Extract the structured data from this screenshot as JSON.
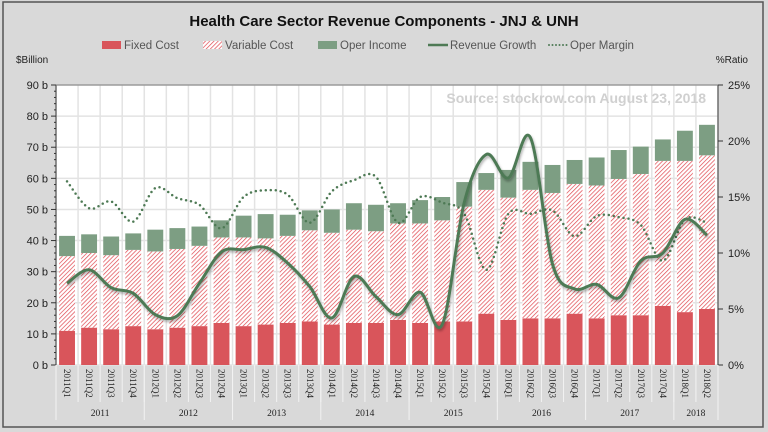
{
  "chart_data": {
    "type": "bar",
    "title": "Health Care Sector Revenue Components - JNJ & UNH",
    "watermark": "Source: stockrow.com August 23, 2018",
    "ylabel_left": "$Billion",
    "ylabel_right": "%Ratio",
    "ylim_left": [
      0,
      90
    ],
    "ylim_right": [
      0,
      25
    ],
    "left_ticks": [
      "0 b",
      "10 b",
      "20 b",
      "30 b",
      "40 b",
      "50 b",
      "60 b",
      "70 b",
      "80 b",
      "90 b"
    ],
    "right_ticks": [
      "0%",
      "5%",
      "10%",
      "15%",
      "20%",
      "25%"
    ],
    "grid": true,
    "legend_placement": "top",
    "categories": [
      "2011Q1",
      "2011Q2",
      "2011Q3",
      "2011Q4",
      "2012Q1",
      "2012Q2",
      "2012Q3",
      "2012Q4",
      "2013Q1",
      "2013Q2",
      "2013Q3",
      "2013Q4",
      "2014Q1",
      "2014Q2",
      "2014Q3",
      "2014Q4",
      "2015Q1",
      "2015Q2",
      "2015Q3",
      "2015Q4",
      "2016Q1",
      "2016Q2",
      "2016Q3",
      "2016Q4",
      "2017Q1",
      "2017Q2",
      "2017Q3",
      "2017Q4",
      "2018Q1",
      "2018Q2"
    ],
    "year_groups": [
      {
        "label": "2011",
        "count": 4
      },
      {
        "label": "2012",
        "count": 4
      },
      {
        "label": "2013",
        "count": 4
      },
      {
        "label": "2014",
        "count": 4
      },
      {
        "label": "2015",
        "count": 4
      },
      {
        "label": "2016",
        "count": 4
      },
      {
        "label": "2017",
        "count": 4
      },
      {
        "label": "2018",
        "count": 2
      }
    ],
    "series": [
      {
        "name": "Fixed Cost",
        "kind": "stacked-bar",
        "axis": "left",
        "color": "#d9555b",
        "values": [
          11,
          12,
          11.5,
          12.5,
          11.5,
          12,
          12.5,
          13.5,
          12.5,
          13,
          13.5,
          14,
          13,
          13.5,
          13.5,
          14.5,
          13.5,
          14,
          14,
          16.5,
          14.5,
          15,
          15,
          16.5,
          15,
          16,
          16,
          19,
          17,
          18
        ]
      },
      {
        "name": "Variable Cost",
        "kind": "stacked-bar-hatched",
        "axis": "left",
        "color": "#e0474f",
        "values": [
          24,
          24,
          23.8,
          24.5,
          25,
          25.3,
          25.8,
          27.5,
          28.5,
          27.7,
          28,
          29.3,
          29.5,
          30,
          29.5,
          31,
          32,
          32.5,
          36.9,
          39.8,
          39.3,
          41.3,
          40.3,
          41.7,
          42.7,
          43.8,
          45.4,
          46.6,
          48.6,
          49.4
        ]
      },
      {
        "name": "Oper Income",
        "kind": "stacked-bar",
        "axis": "left",
        "color": "#7d9e83",
        "values": [
          6.5,
          6,
          6,
          5.3,
          7,
          6.7,
          6.2,
          5.5,
          7,
          7.8,
          6.8,
          6.4,
          7.5,
          8.5,
          8.5,
          6.5,
          7.5,
          7.5,
          7.9,
          5.4,
          8.9,
          9,
          9,
          7.7,
          9,
          9.3,
          8.8,
          6.9,
          9.7,
          9.8
        ]
      },
      {
        "name": "Revenue Growth",
        "kind": "line",
        "axis": "right",
        "color": "#4e7a55",
        "values": [
          7.3,
          8.5,
          6.9,
          6.4,
          4.5,
          4.4,
          7.3,
          10.1,
          10.3,
          10.5,
          9.1,
          7.0,
          4.2,
          7.9,
          6.1,
          4.5,
          6.5,
          3.6,
          14.5,
          18.8,
          16.7,
          20.3,
          9.0,
          6.8,
          7.2,
          6.0,
          9.3,
          10.0,
          13.0,
          11.6
        ]
      },
      {
        "name": "Oper Margin",
        "kind": "dotted-line",
        "axis": "right",
        "color": "#4e7a55",
        "values": [
          16.4,
          14.0,
          14.6,
          12.8,
          15.8,
          14.9,
          14.3,
          12.2,
          15.0,
          15.6,
          15.2,
          12.7,
          15.5,
          16.5,
          16.8,
          12.7,
          15.0,
          14.5,
          13.5,
          8.5,
          13.5,
          13.5,
          13.8,
          11.5,
          13.3,
          13.2,
          12.5,
          9.3,
          13.0,
          12.7
        ]
      }
    ]
  }
}
